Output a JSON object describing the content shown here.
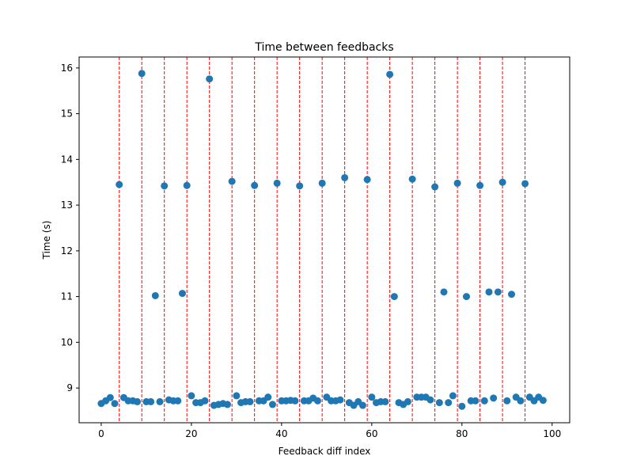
{
  "chart_data": {
    "type": "scatter",
    "title": "Time between feedbacks",
    "xlabel": "Feedback diff index",
    "ylabel": "Time (s)",
    "xlim": [
      -4.9,
      103.9
    ],
    "ylim": [
      8.24,
      16.24
    ],
    "xticks": [
      0,
      20,
      40,
      60,
      80,
      100
    ],
    "yticks": [
      9,
      10,
      11,
      12,
      13,
      14,
      15,
      16
    ],
    "grid": false,
    "point_color": "#1f77b4",
    "vline_color": "#ff0000",
    "vlines": [
      4,
      9,
      14,
      19,
      24,
      29,
      34,
      39,
      44,
      49,
      54,
      59,
      64,
      69,
      74,
      79,
      84,
      89,
      94
    ],
    "x": [
      0,
      1,
      2,
      3,
      4,
      5,
      6,
      7,
      8,
      9,
      10,
      11,
      12,
      13,
      14,
      15,
      16,
      17,
      18,
      19,
      20,
      21,
      22,
      23,
      24,
      25,
      26,
      27,
      28,
      29,
      30,
      31,
      32,
      33,
      34,
      35,
      36,
      37,
      38,
      39,
      40,
      41,
      42,
      43,
      44,
      45,
      46,
      47,
      48,
      49,
      50,
      51,
      52,
      53,
      54,
      55,
      56,
      57,
      58,
      59,
      60,
      61,
      62,
      63,
      64,
      65,
      66,
      67,
      68,
      69,
      70,
      71,
      72,
      73,
      74,
      75,
      76,
      77,
      78,
      79,
      80,
      81,
      82,
      83,
      84,
      85,
      86,
      87,
      88,
      89,
      90,
      91,
      92,
      93,
      94,
      95,
      96,
      97,
      98
    ],
    "y": [
      8.66,
      8.72,
      8.79,
      8.66,
      13.45,
      8.79,
      8.72,
      8.72,
      8.7,
      15.88,
      8.7,
      8.7,
      11.02,
      8.7,
      13.42,
      8.74,
      8.72,
      8.72,
      11.07,
      13.43,
      8.83,
      8.68,
      8.68,
      8.72,
      15.76,
      8.62,
      8.64,
      8.66,
      8.64,
      13.52,
      8.83,
      8.68,
      8.7,
      8.7,
      13.43,
      8.72,
      8.72,
      8.8,
      8.64,
      13.48,
      8.72,
      8.72,
      8.73,
      8.72,
      13.42,
      8.72,
      8.72,
      8.78,
      8.72,
      13.48,
      8.8,
      8.72,
      8.72,
      8.74,
      13.6,
      8.68,
      8.62,
      8.7,
      8.62,
      13.56,
      8.8,
      8.68,
      8.7,
      8.7,
      15.86,
      11.0,
      8.68,
      8.64,
      8.7,
      13.57,
      8.8,
      8.8,
      8.8,
      8.74,
      13.4,
      8.68,
      11.1,
      8.68,
      8.83,
      13.48,
      8.6,
      11.0,
      8.72,
      8.72,
      13.43,
      8.72,
      11.1,
      8.78,
      11.1,
      13.5,
      8.72,
      11.05,
      8.8,
      8.72,
      13.47,
      8.8,
      8.72,
      8.8,
      8.73
    ]
  }
}
